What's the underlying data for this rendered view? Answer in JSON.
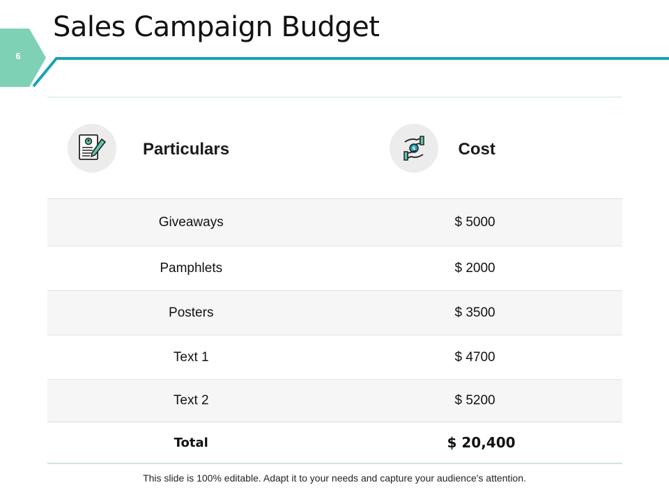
{
  "slide": {
    "page_number": "6",
    "title": "Sales Campaign Budget",
    "accent_color": "#16a2b4",
    "tab_color": "#7fd1b6",
    "footer_note": "This slide is 100% editable. Adapt it to your needs and capture your audience's attention."
  },
  "table": {
    "headers": {
      "particulars": "Particulars",
      "cost": "Cost",
      "particulars_icon": "resume-pencil-icon",
      "cost_icon": "money-hand-icon"
    },
    "rows": [
      {
        "item": "Giveaways",
        "cost": "$ 5000"
      },
      {
        "item": "Pamphlets",
        "cost": "$ 2000"
      },
      {
        "item": "Posters",
        "cost": "$ 3500"
      },
      {
        "item": "Text 1",
        "cost": "$ 4700"
      },
      {
        "item": "Text 2",
        "cost": "$ 5200"
      }
    ],
    "total": {
      "label": "Total",
      "cost": "$ 20,400"
    }
  }
}
